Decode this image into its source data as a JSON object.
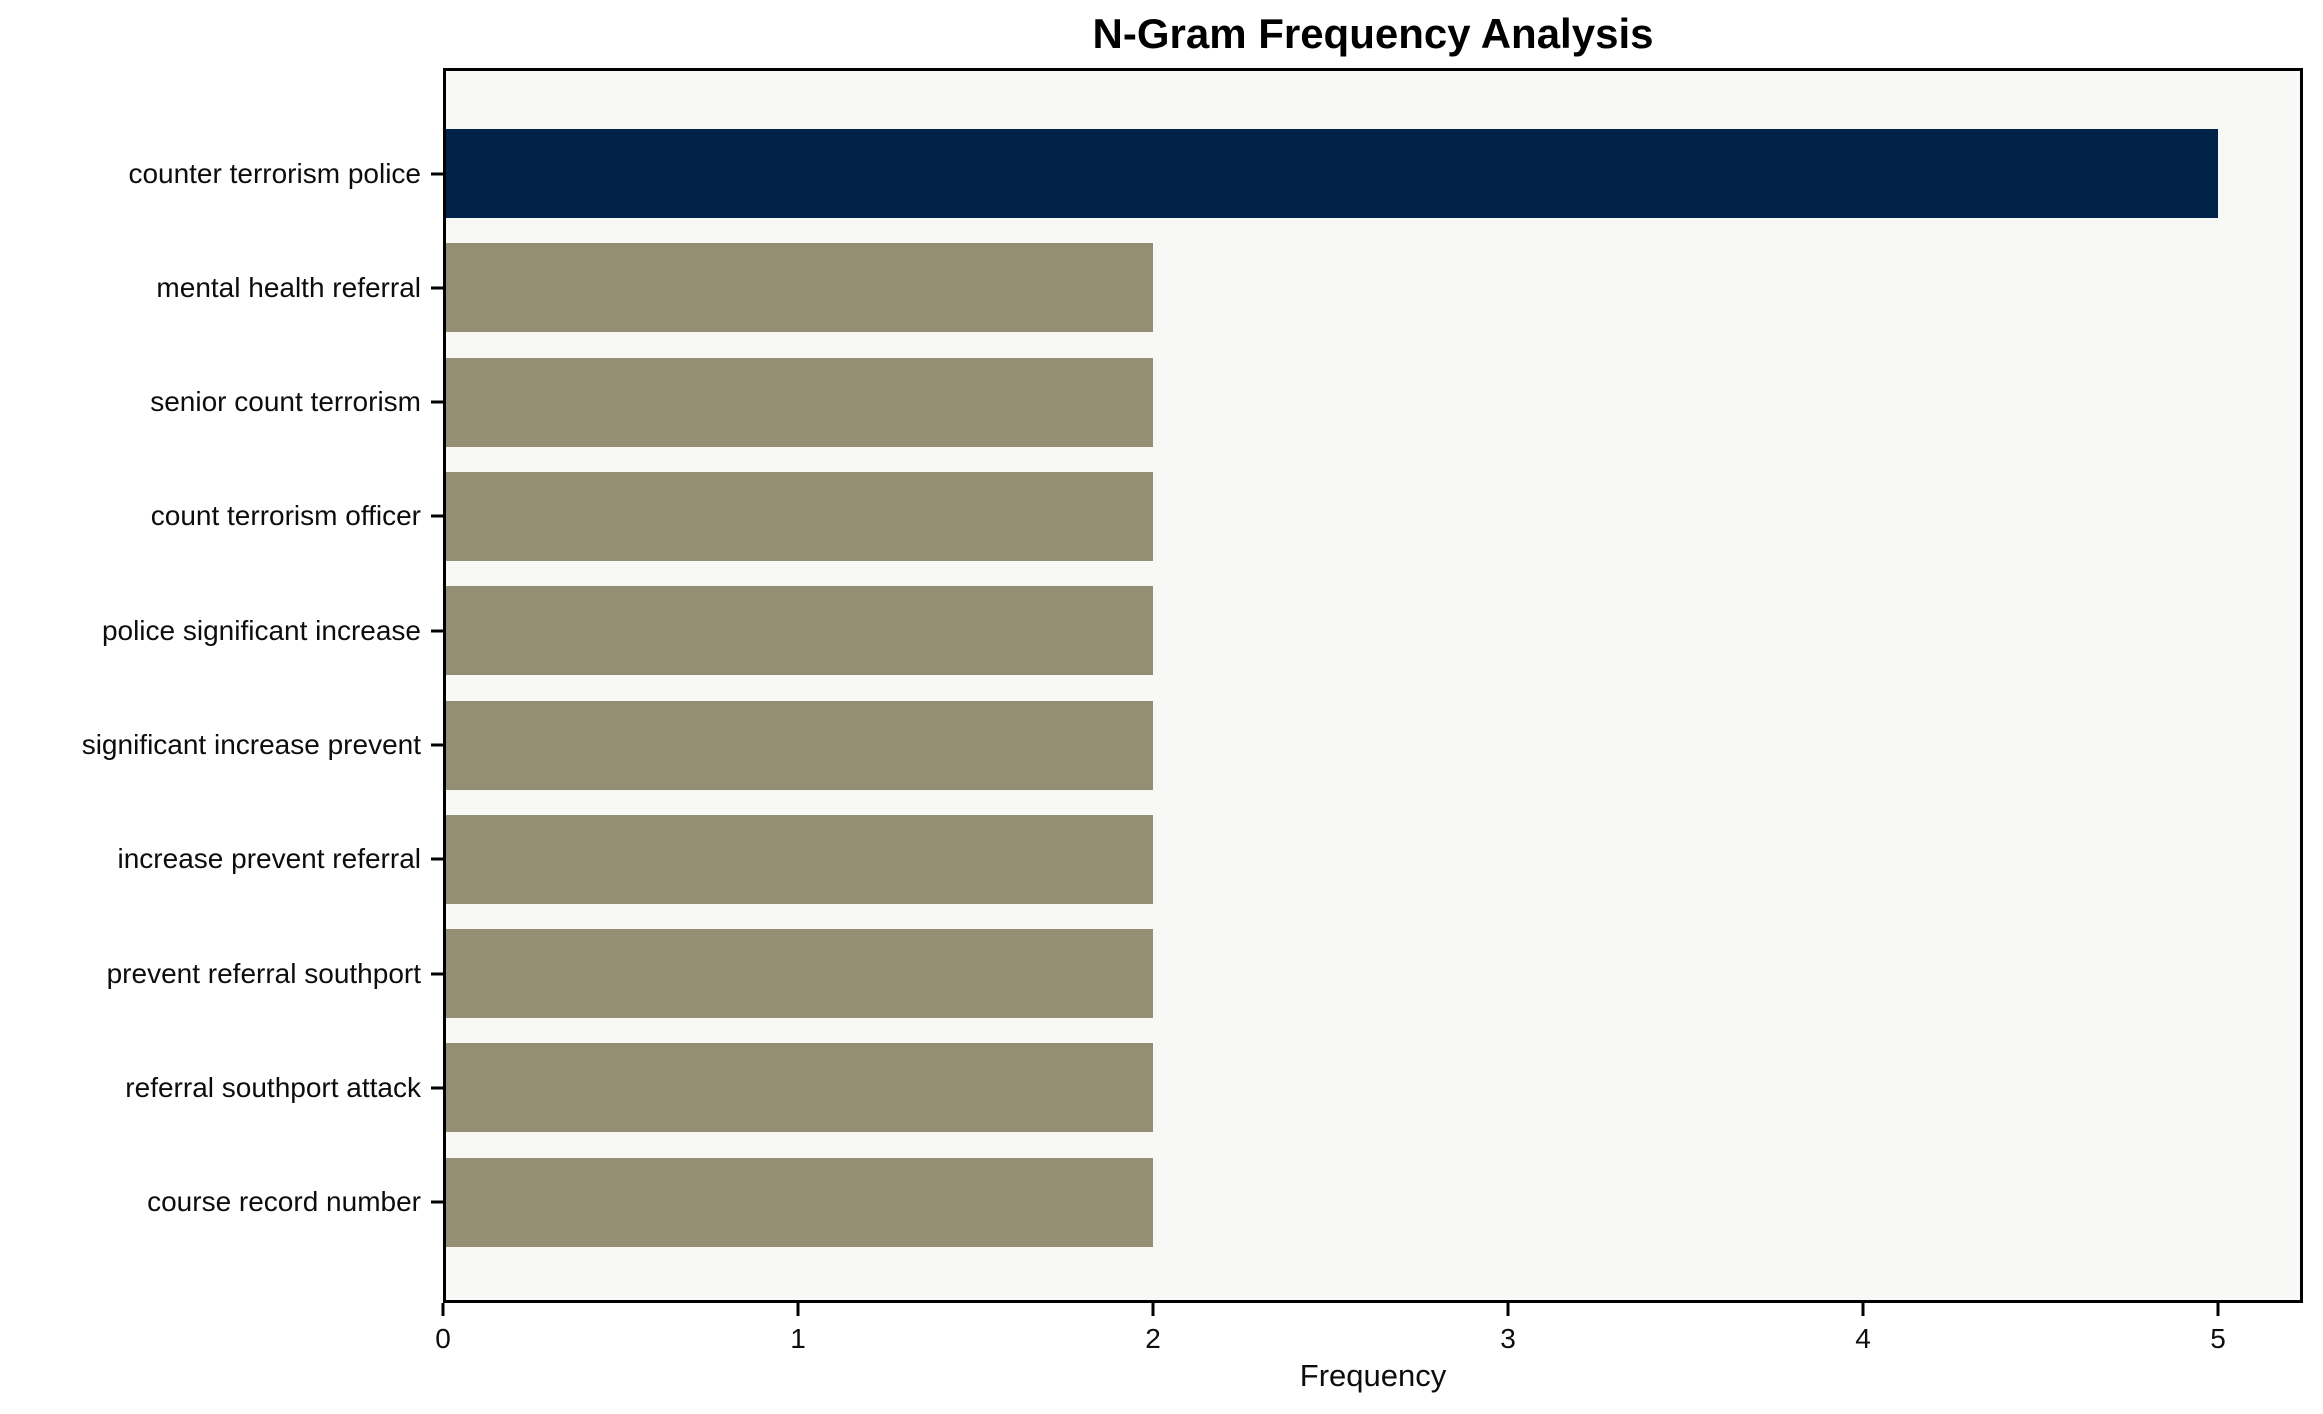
{
  "chart_data": {
    "type": "bar",
    "orientation": "horizontal",
    "title": "N-Gram Frequency Analysis",
    "xlabel": "Frequency",
    "ylabel": "",
    "categories": [
      "counter terrorism police",
      "mental health referral",
      "senior count terrorism",
      "count terrorism officer",
      "police significant increase",
      "significant increase prevent",
      "increase prevent referral",
      "prevent referral southport",
      "referral southport attack",
      "course record number"
    ],
    "values": [
      5,
      2,
      2,
      2,
      2,
      2,
      2,
      2,
      2,
      2
    ],
    "xticks": [
      0,
      1,
      2,
      3,
      4,
      5
    ],
    "xlim": [
      0,
      5.25
    ],
    "grid": false,
    "legend_position": "none",
    "colors": {
      "highlight_bar": "#022349",
      "default_bar": "#948E74",
      "plot_background": "#F8F8F7",
      "figure_background": "#FFFFFF",
      "spine": "#000000",
      "text": "#0D0D0D"
    }
  }
}
